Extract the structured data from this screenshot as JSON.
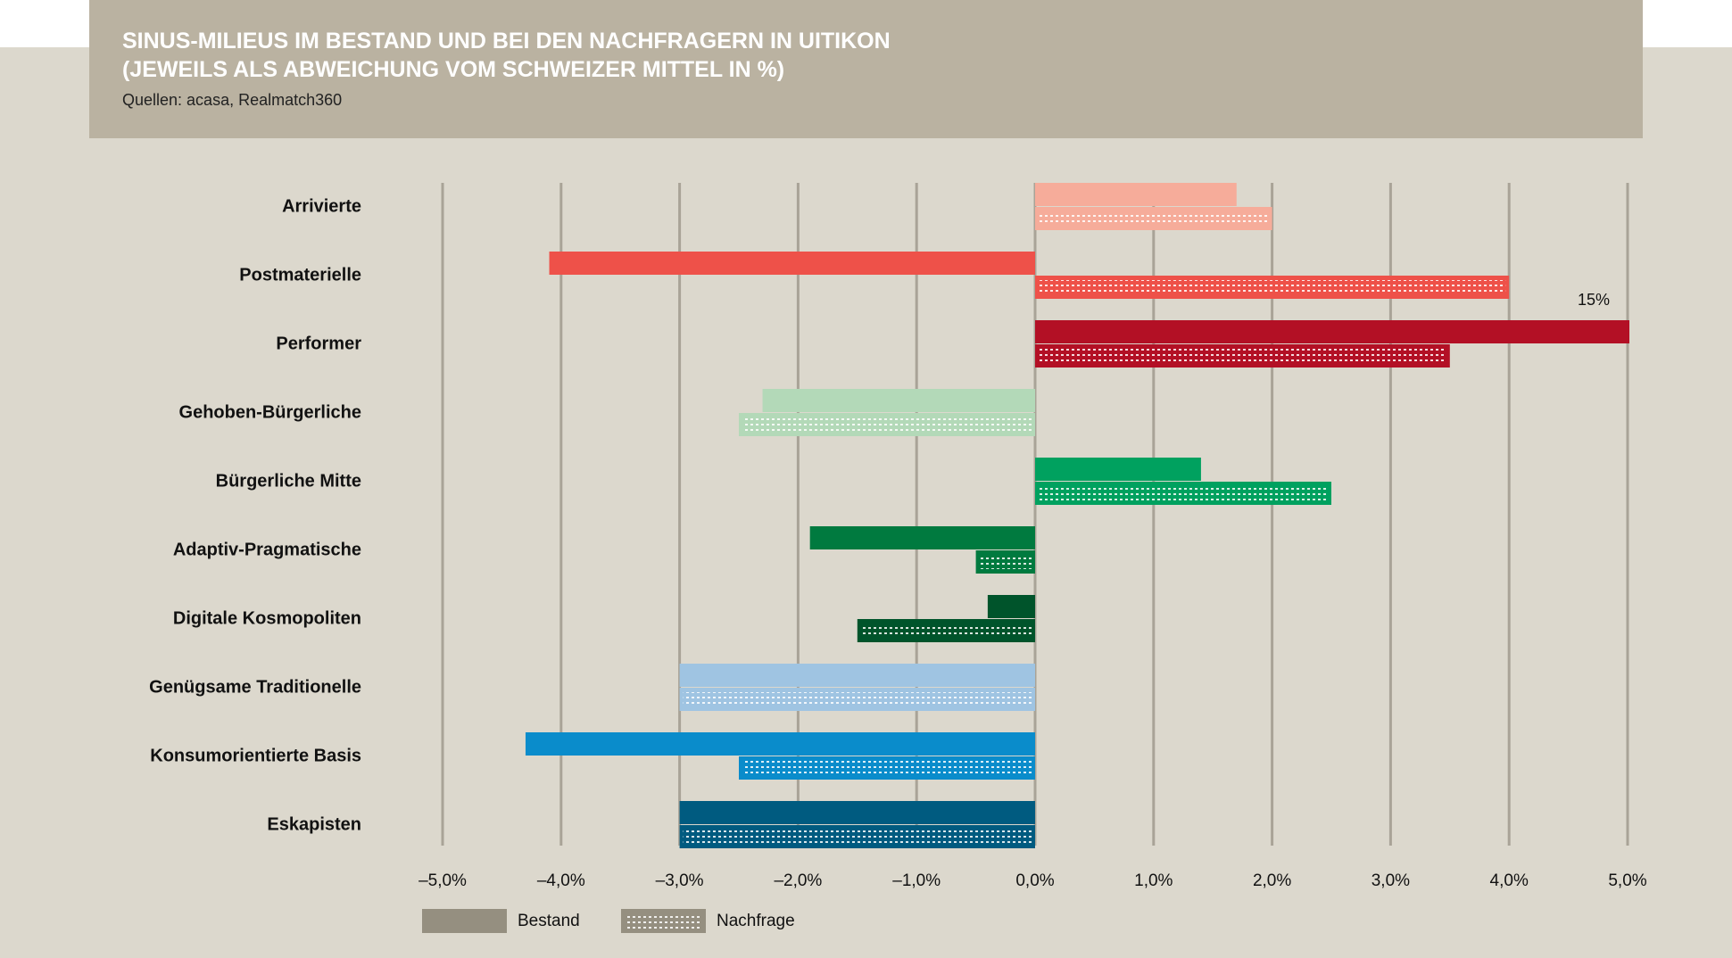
{
  "chart_data": {
    "type": "bar",
    "orientation": "horizontal",
    "title": [
      "SINUS-MILIEUS IM BESTAND UND BEI DEN NACHFRAGERN IN UITIKON",
      "(JEWEILS ALS ABWEICHUNG VOM SCHWEIZER MITTEL IN %)"
    ],
    "subtitle": "Quellen: acasa, Realmatch360",
    "categories": [
      "Arrivierte",
      "Postmaterielle",
      "Performer",
      "Gehoben-Bürgerliche",
      "Bürgerliche Mitte",
      "Adaptiv-Pragmatische",
      "Digitale Kosmopoliten",
      "Genügsame Traditionelle",
      "Konsumorientierte Basis",
      "Eskapisten"
    ],
    "colors": [
      "#f6ac9a",
      "#ee5149",
      "#b31025",
      "#b3d9b8",
      "#00a15f",
      "#007a3f",
      "#00542b",
      "#9fc4e2",
      "#0a8ccb",
      "#005b80"
    ],
    "series": [
      {
        "name": "Bestand",
        "color": "#958f80",
        "pattern": "solid",
        "values": [
          1.7,
          -4.1,
          15,
          -2.3,
          1.4,
          -1.9,
          -0.4,
          -3.0,
          -4.3,
          -3.0
        ],
        "value_labels": [
          null,
          null,
          "15%",
          null,
          null,
          null,
          null,
          null,
          null,
          null
        ]
      },
      {
        "name": "Nachfrage",
        "color": "#958f80",
        "pattern": "dotted",
        "values": [
          2.0,
          4.0,
          3.5,
          -2.5,
          2.5,
          -0.5,
          -1.5,
          -3.0,
          -2.5,
          -3.0
        ]
      }
    ],
    "xlim": [
      -5,
      5
    ],
    "xticks": [
      {
        "value": -5,
        "label": "–5,0%"
      },
      {
        "value": -4,
        "label": "–4,0%"
      },
      {
        "value": -3,
        "label": "–3,0%"
      },
      {
        "value": -2,
        "label": "–2,0%"
      },
      {
        "value": -1,
        "label": "–1,0%"
      },
      {
        "value": 0,
        "label": "0,0%"
      },
      {
        "value": 1,
        "label": "1,0%"
      },
      {
        "value": 2,
        "label": "2,0%"
      },
      {
        "value": 3,
        "label": "3,0%"
      },
      {
        "value": 4,
        "label": "4,0%"
      },
      {
        "value": 5,
        "label": "5,0%"
      }
    ],
    "grid": true,
    "legend": "bottom-left"
  }
}
